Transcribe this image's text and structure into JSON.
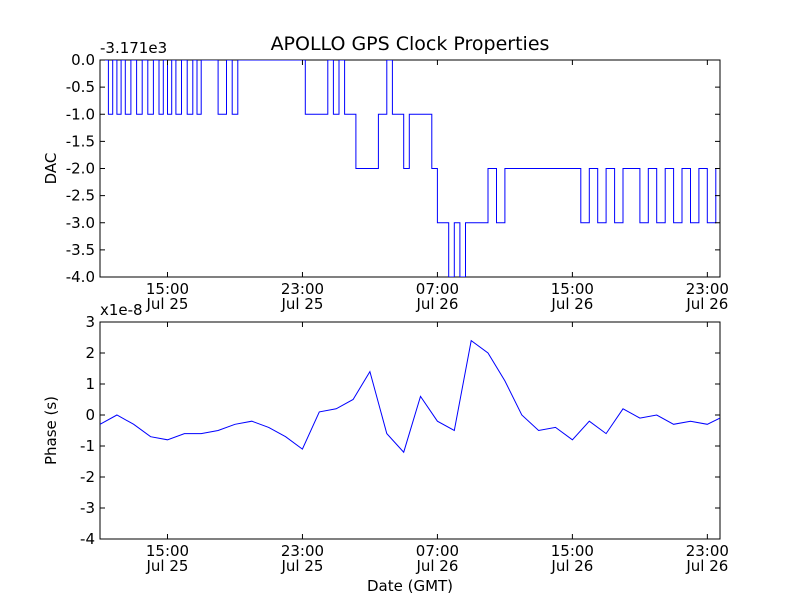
{
  "figure": {
    "title": "APOLLO GPS Clock Properties",
    "xlabel": "Date (GMT)"
  },
  "chart_data": [
    {
      "type": "line",
      "ylabel": "DAC",
      "offset_label": "-3.171e3",
      "color": "#0000ff",
      "xlim": [
        "2010-07-25T11:00",
        "2010-07-26T23:45"
      ],
      "ylim": [
        -4.0,
        0.0
      ],
      "yticks": [
        "0.0",
        "-0.5",
        "-1.0",
        "-1.5",
        "-2.0",
        "-2.5",
        "-3.0",
        "-3.5",
        "-4.0"
      ],
      "xticks": [
        {
          "time": "15:00",
          "date": "Jul 25"
        },
        {
          "time": "23:00",
          "date": "Jul 25"
        },
        {
          "time": "07:00",
          "date": "Jul 26"
        },
        {
          "time": "15:00",
          "date": "Jul 26"
        },
        {
          "time": "23:00",
          "date": "Jul 26"
        }
      ],
      "x": [
        "2010-07-25T11:00",
        "2010-07-25T11:30",
        "2010-07-25T11:45",
        "2010-07-25T12:00",
        "2010-07-25T12:15",
        "2010-07-25T12:30",
        "2010-07-25T12:50",
        "2010-07-25T13:10",
        "2010-07-25T13:30",
        "2010-07-25T13:50",
        "2010-07-25T14:10",
        "2010-07-25T14:30",
        "2010-07-25T14:45",
        "2010-07-25T15:00",
        "2010-07-25T15:15",
        "2010-07-25T15:30",
        "2010-07-25T15:50",
        "2010-07-25T16:10",
        "2010-07-25T16:30",
        "2010-07-25T16:45",
        "2010-07-25T17:00",
        "2010-07-25T17:30",
        "2010-07-25T18:00",
        "2010-07-25T18:30",
        "2010-07-25T18:50",
        "2010-07-25T19:10",
        "2010-07-25T19:40",
        "2010-07-25T20:10",
        "2010-07-25T20:40",
        "2010-07-25T21:00",
        "2010-07-25T21:30",
        "2010-07-25T22:00",
        "2010-07-25T22:30",
        "2010-07-25T23:00",
        "2010-07-25T23:10",
        "2010-07-25T23:30",
        "2010-07-26T00:00",
        "2010-07-26T00:30",
        "2010-07-26T00:50",
        "2010-07-26T01:10",
        "2010-07-26T01:30",
        "2010-07-26T01:50",
        "2010-07-26T02:10",
        "2010-07-26T02:30",
        "2010-07-26T03:00",
        "2010-07-26T03:30",
        "2010-07-26T04:00",
        "2010-07-26T04:20",
        "2010-07-26T04:40",
        "2010-07-26T05:00",
        "2010-07-26T05:20",
        "2010-07-26T05:40",
        "2010-07-26T06:00",
        "2010-07-26T06:20",
        "2010-07-26T06:40",
        "2010-07-26T07:00",
        "2010-07-26T07:20",
        "2010-07-26T07:40",
        "2010-07-26T08:00",
        "2010-07-26T08:20",
        "2010-07-26T08:40",
        "2010-07-26T09:00",
        "2010-07-26T09:30",
        "2010-07-26T10:00",
        "2010-07-26T10:30",
        "2010-07-26T11:00",
        "2010-07-26T11:30",
        "2010-07-26T12:00",
        "2010-07-26T12:30",
        "2010-07-26T13:00",
        "2010-07-26T13:30",
        "2010-07-26T14:00",
        "2010-07-26T14:30",
        "2010-07-26T15:00",
        "2010-07-26T15:30",
        "2010-07-26T16:00",
        "2010-07-26T16:30",
        "2010-07-26T17:00",
        "2010-07-26T17:30",
        "2010-07-26T18:00",
        "2010-07-26T18:30",
        "2010-07-26T19:00",
        "2010-07-26T19:30",
        "2010-07-26T20:00",
        "2010-07-26T20:30",
        "2010-07-26T21:00",
        "2010-07-26T21:30",
        "2010-07-26T22:00",
        "2010-07-26T22:30",
        "2010-07-26T23:00",
        "2010-07-26T23:30",
        "2010-07-26T23:45"
      ],
      "y": [
        0.0,
        -1.0,
        0.0,
        -1.0,
        0.0,
        -1.0,
        0.0,
        -1.0,
        0.0,
        -1.0,
        0.0,
        -1.0,
        0.0,
        -1.0,
        0.0,
        -1.0,
        0.0,
        -1.0,
        0.0,
        -1.0,
        0.0,
        0.0,
        -1.0,
        0.0,
        -1.0,
        0.0,
        0.0,
        0.0,
        0.0,
        0.0,
        0.0,
        0.0,
        0.0,
        0.0,
        -1.0,
        -1.0,
        -1.0,
        0.0,
        -1.0,
        0.0,
        -1.0,
        -1.0,
        -2.0,
        -2.0,
        -2.0,
        -1.0,
        0.0,
        -1.0,
        -1.0,
        -2.0,
        -1.0,
        -1.0,
        -1.0,
        -1.0,
        -2.0,
        -3.0,
        -3.0,
        -4.0,
        -3.0,
        -4.0,
        -3.0,
        -3.0,
        -3.0,
        -2.0,
        -3.0,
        -2.0,
        -2.0,
        -2.0,
        -2.0,
        -2.0,
        -2.0,
        -2.0,
        -2.0,
        -2.0,
        -3.0,
        -2.0,
        -3.0,
        -2.0,
        -3.0,
        -2.0,
        -2.0,
        -3.0,
        -2.0,
        -3.0,
        -2.0,
        -3.0,
        -2.0,
        -3.0,
        -2.0,
        -3.0,
        -2.0,
        -2.0
      ]
    },
    {
      "type": "line",
      "ylabel": "Phase (s)",
      "offset_label": "x1e-8",
      "color": "#0000ff",
      "xlim": [
        "2010-07-25T11:00",
        "2010-07-26T23:45"
      ],
      "ylim": [
        -4,
        3
      ],
      "yticks": [
        "3",
        "2",
        "1",
        "0",
        "-1",
        "-2",
        "-3",
        "-4"
      ],
      "xticks": [
        {
          "time": "15:00",
          "date": "Jul 25"
        },
        {
          "time": "23:00",
          "date": "Jul 25"
        },
        {
          "time": "07:00",
          "date": "Jul 26"
        },
        {
          "time": "15:00",
          "date": "Jul 26"
        },
        {
          "time": "23:00",
          "date": "Jul 26"
        }
      ],
      "x": [
        "2010-07-25T11:00",
        "2010-07-25T12:00",
        "2010-07-25T13:00",
        "2010-07-25T14:00",
        "2010-07-25T15:00",
        "2010-07-25T16:00",
        "2010-07-25T17:00",
        "2010-07-25T18:00",
        "2010-07-25T19:00",
        "2010-07-25T20:00",
        "2010-07-25T21:00",
        "2010-07-25T22:00",
        "2010-07-25T23:00",
        "2010-07-26T00:00",
        "2010-07-26T01:00",
        "2010-07-26T02:00",
        "2010-07-26T03:00",
        "2010-07-26T04:00",
        "2010-07-26T05:00",
        "2010-07-26T06:00",
        "2010-07-26T07:00",
        "2010-07-26T08:00",
        "2010-07-26T09:00",
        "2010-07-26T10:00",
        "2010-07-26T11:00",
        "2010-07-26T12:00",
        "2010-07-26T13:00",
        "2010-07-26T14:00",
        "2010-07-26T15:00",
        "2010-07-26T16:00",
        "2010-07-26T17:00",
        "2010-07-26T18:00",
        "2010-07-26T19:00",
        "2010-07-26T20:00",
        "2010-07-26T21:00",
        "2010-07-26T22:00",
        "2010-07-26T23:00",
        "2010-07-26T23:45"
      ],
      "y": [
        -0.3,
        0.0,
        -0.3,
        -0.7,
        -0.8,
        -0.6,
        -0.6,
        -0.5,
        -0.3,
        -0.2,
        -0.4,
        -0.7,
        -1.1,
        0.1,
        0.2,
        0.5,
        1.4,
        -0.6,
        -1.2,
        0.6,
        -0.2,
        -0.5,
        2.4,
        2.0,
        1.1,
        0.0,
        -0.5,
        -0.4,
        -0.8,
        -0.2,
        -0.6,
        0.2,
        -0.1,
        0.0,
        -0.3,
        -0.2,
        -0.3,
        -0.1
      ]
    }
  ]
}
